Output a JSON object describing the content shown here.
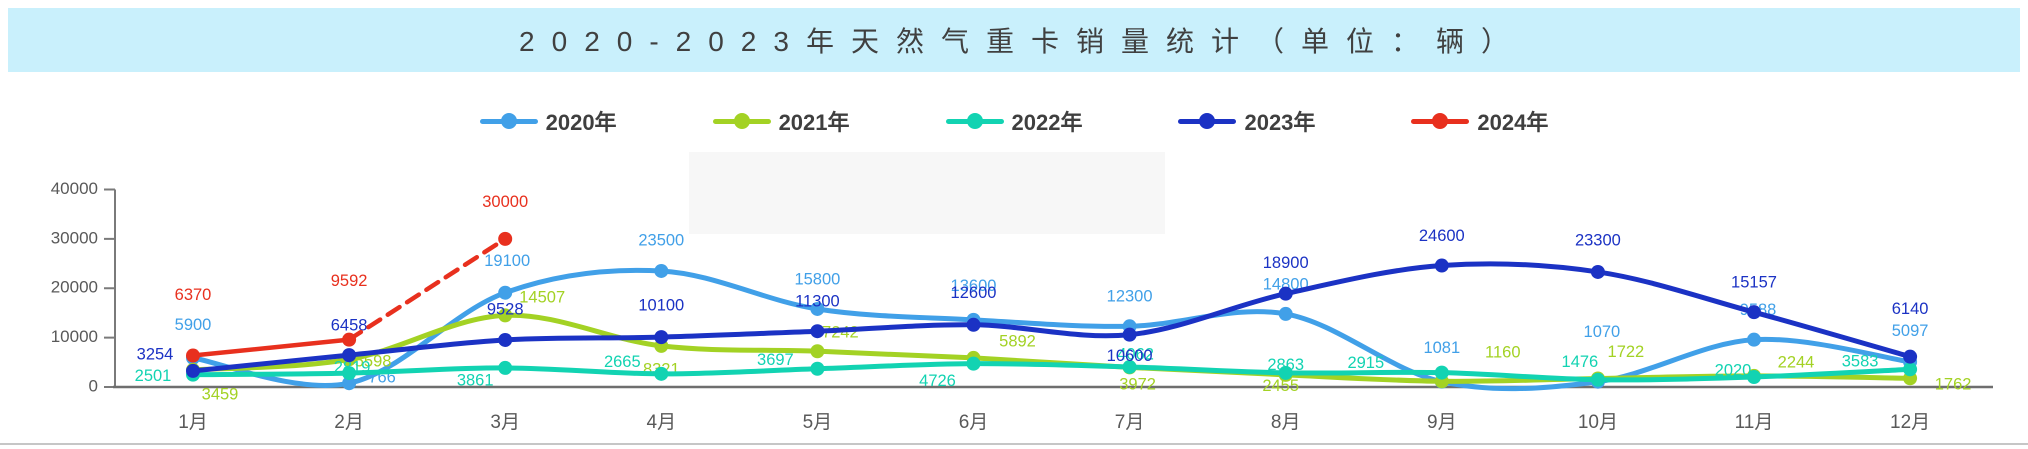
{
  "title": {
    "text": "2020-2023年天然气重卡销量统计（单位：辆）",
    "bg_color": "#C9F0FC",
    "text_color": "#404040"
  },
  "axis": {
    "line_color": "#7a7a7a",
    "tick_label_color": "#595959",
    "bottom_border_color": "#c6c6c6"
  },
  "chart_data": {
    "type": "line",
    "title": "2020-2023年天然气重卡销量统计（单位：辆）",
    "xlabel": "",
    "ylabel": "",
    "x": [
      "1月",
      "2月",
      "3月",
      "4月",
      "5月",
      "6月",
      "7月",
      "8月",
      "9月",
      "10月",
      "11月",
      "12月"
    ],
    "ylim": [
      0,
      40000
    ],
    "y_ticks": [
      0,
      10000,
      20000,
      30000,
      40000
    ],
    "grid": false,
    "legend_position": "top",
    "line_style": "smooth",
    "point_labels_visible": true,
    "series": [
      {
        "name": "2020年",
        "color": "#41A0E8",
        "values": [
          5900,
          766,
          19100,
          23500,
          15800,
          13600,
          12300,
          14800,
          1081,
          1070,
          9588,
          5097
        ],
        "label_offsets": [
          [
            0,
            -32
          ],
          [
            33,
            -5
          ],
          [
            2,
            -31
          ],
          [
            0,
            -30
          ],
          [
            0,
            -29
          ],
          [
            0,
            -33
          ],
          [
            0,
            -29
          ],
          [
            0,
            -29
          ],
          [
            0,
            -33
          ],
          [
            4,
            -49
          ],
          [
            4,
            -29
          ],
          [
            0,
            -30
          ]
        ]
      },
      {
        "name": "2021年",
        "color": "#A3D224",
        "values": [
          3459,
          5598,
          14507,
          8321,
          7242,
          5892,
          3972,
          2455,
          1160,
          1722,
          2244,
          1762
        ],
        "label_offsets": [
          [
            27,
            25
          ],
          [
            24,
            3
          ],
          [
            37,
            -17
          ],
          [
            0,
            24
          ],
          [
            23,
            -18
          ],
          [
            44,
            -16
          ],
          [
            8,
            18
          ],
          [
            -5,
            12
          ],
          [
            61,
            -28
          ],
          [
            28,
            -26
          ],
          [
            42,
            -13
          ],
          [
            43,
            7
          ]
        ]
      },
      {
        "name": "2022年",
        "color": "#12D3B2",
        "values": [
          2501,
          2819,
          3861,
          2665,
          3697,
          4726,
          4062,
          2863,
          2915,
          1476,
          2020,
          3583
        ],
        "label_offsets": [
          [
            -40,
            2
          ],
          [
            3,
            -5
          ],
          [
            -30,
            13
          ],
          [
            -39,
            -11
          ],
          [
            -42,
            -8
          ],
          [
            -36,
            18
          ],
          [
            6,
            -12
          ],
          [
            0,
            -7
          ],
          [
            -76,
            -9
          ],
          [
            -18,
            -17
          ],
          [
            -21,
            -6
          ],
          [
            -50,
            -7
          ]
        ]
      },
      {
        "name": "2023年",
        "color": "#1B32C4",
        "values": [
          3254,
          6458,
          9528,
          10100,
          11300,
          12600,
          10600,
          18900,
          24600,
          23300,
          15157,
          6140
        ],
        "label_offsets": [
          [
            -38,
            -16
          ],
          [
            0,
            -29
          ],
          [
            0,
            -30
          ],
          [
            0,
            -31
          ],
          [
            0,
            -29
          ],
          [
            0,
            -31
          ],
          [
            0,
            22
          ],
          [
            0,
            -30
          ],
          [
            0,
            -29
          ],
          [
            0,
            -31
          ],
          [
            0,
            -29
          ],
          [
            0,
            -47
          ]
        ]
      },
      {
        "name": "2024年",
        "color": "#E8301E",
        "values": [
          6370,
          9592,
          30000
        ],
        "dashed_from_index": 1,
        "label_offsets": [
          [
            0,
            -60
          ],
          [
            0,
            -58
          ],
          [
            0,
            -36
          ]
        ]
      }
    ]
  }
}
